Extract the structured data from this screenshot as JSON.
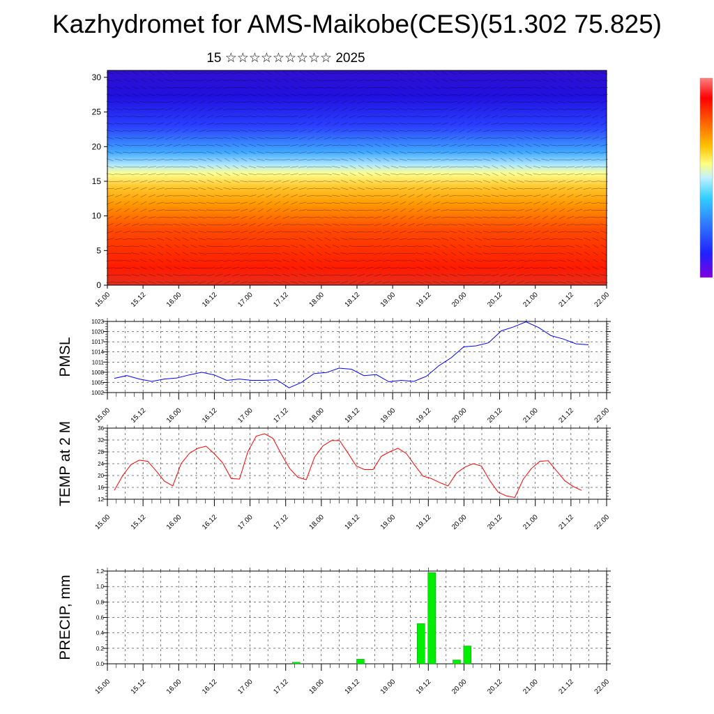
{
  "title": "Kazhydromet for AMS-Maikobe(CES)(51.302 75.825)",
  "subtitle": "15 ☆☆☆☆☆☆☆☆☆ 2025",
  "chart_data": [
    {
      "type": "heatmap",
      "name": "upper-air-cross-section",
      "x_ticks": [
        "15.00",
        "15.12",
        "16.00",
        "16.12",
        "17.00",
        "17.12",
        "18.00",
        "18.12",
        "19.00",
        "19.12",
        "20.00",
        "20.12",
        "21.00",
        "21.12",
        "22.00"
      ],
      "y_ticks": [
        0,
        5,
        10,
        15,
        20,
        25,
        30
      ],
      "ylim": [
        0,
        31
      ],
      "colorbar": [
        "#8000e0",
        "#3030ff",
        "#60a0ff",
        "#30d0ff",
        "#ffff80",
        "#ffc000",
        "#ff6000",
        "#ff0000",
        "#ff8080"
      ],
      "overlay": "wind barbs"
    },
    {
      "type": "line",
      "ylabel": "PMSL",
      "y_ticks": [
        1002,
        1005,
        1008,
        1011,
        1014,
        1017,
        1020,
        1023
      ],
      "ylim": [
        1002,
        1023
      ],
      "x_ticks": [
        "15.00",
        "15.12",
        "16.00",
        "16.12",
        "17.00",
        "17.12",
        "18.00",
        "18.12",
        "19.00",
        "19.12",
        "20.00",
        "20.12",
        "21.00",
        "21.12",
        "22.00"
      ],
      "color": "#0000ff",
      "values": [
        1006.2,
        1007.0,
        1006.0,
        1005.3,
        1006.0,
        1006.3,
        1007.2,
        1008.0,
        1007.2,
        1005.6,
        1006.0,
        1005.6,
        1005.6,
        1005.8,
        1003.4,
        1005.0,
        1007.6,
        1007.9,
        1009.2,
        1008.9,
        1007.0,
        1007.3,
        1005.2,
        1005.6,
        1005.3,
        1006.8,
        1009.9,
        1012.3,
        1015.5,
        1015.8,
        1016.7,
        1020.2,
        1021.4,
        1022.9,
        1021.2,
        1018.8,
        1017.8,
        1016.4,
        1016.1
      ],
      "grid": true
    },
    {
      "type": "line",
      "ylabel": "TEMP at 2 M",
      "y_ticks": [
        12,
        16,
        20,
        24,
        28,
        32,
        36
      ],
      "ylim": [
        12,
        36
      ],
      "x_ticks": [
        "15.00",
        "15.12",
        "16.00",
        "16.12",
        "17.00",
        "17.12",
        "18.00",
        "18.12",
        "19.00",
        "19.12",
        "20.00",
        "20.12",
        "21.00",
        "21.12",
        "22.00"
      ],
      "color": "#ff0000",
      "values": [
        15,
        20,
        23.7,
        25.2,
        24.8,
        21.6,
        18.1,
        16.5,
        24,
        27.5,
        29.2,
        29.9,
        27.3,
        24.2,
        19,
        18.8,
        28,
        33.3,
        34.1,
        32.6,
        27.3,
        22.4,
        19.4,
        18.6,
        26.2,
        30,
        31.8,
        31.8,
        27.6,
        23.2,
        22,
        22,
        26.5,
        28,
        29.2,
        27.4,
        23.5,
        19.8,
        19,
        17.6,
        16.5,
        20.8,
        22.8,
        24,
        23.2,
        18.3,
        14.4,
        13.1,
        12.6,
        18.7,
        22.4,
        24.8,
        25,
        21.6,
        18.2,
        16.3,
        15
      ],
      "grid": true
    },
    {
      "type": "bar",
      "ylabel": "PRECIP, mm",
      "y_ticks": [
        "0.0",
        "0.2",
        "0.4",
        "0.6",
        "0.8",
        "1.0",
        "1.2"
      ],
      "ylim": [
        0,
        1.2
      ],
      "x_ticks": [
        "15.00",
        "15.12",
        "16.00",
        "16.12",
        "17.00",
        "17.12",
        "18.00",
        "18.12",
        "19.00",
        "19.12",
        "20.00",
        "20.12",
        "21.00",
        "21.12",
        "22.00"
      ],
      "color": "#00ee00",
      "bars": [
        {
          "x": 5.1,
          "value": 0.02
        },
        {
          "x": 6.9,
          "value": 0.06
        },
        {
          "x": 8.6,
          "value": 0.52
        },
        {
          "x": 8.9,
          "value": 1.18
        },
        {
          "x": 9.6,
          "value": 0.05
        },
        {
          "x": 9.9,
          "value": 0.23
        }
      ],
      "grid": true
    }
  ]
}
